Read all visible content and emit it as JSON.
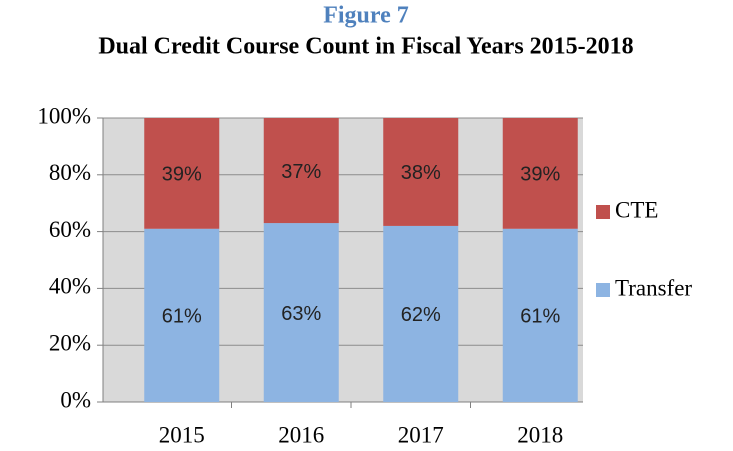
{
  "chart_data": {
    "type": "stacked_bar",
    "title": "Figure 7",
    "subtitle": "Dual Credit Course Count in Fiscal Years 2015-2018",
    "categories": [
      "2015",
      "2016",
      "2017",
      "2018"
    ],
    "series": [
      {
        "name": "Transfer",
        "color": "#8db4e2",
        "values": [
          61,
          63,
          62,
          61
        ],
        "value_labels": [
          "61%",
          "63%",
          "62%",
          "61%"
        ]
      },
      {
        "name": "CTE",
        "color": "#c0504d",
        "values": [
          39,
          37,
          38,
          39
        ],
        "value_labels": [
          "39%",
          "37%",
          "38%",
          "39%"
        ]
      }
    ],
    "ylim": [
      0,
      100
    ],
    "yticks": [
      {
        "value": 0,
        "label": "0%"
      },
      {
        "value": 20,
        "label": "20%"
      },
      {
        "value": 40,
        "label": "40%"
      },
      {
        "value": 60,
        "label": "60%"
      },
      {
        "value": 80,
        "label": "80%"
      },
      {
        "value": 100,
        "label": "100%"
      }
    ],
    "grid": true,
    "legend": "right"
  }
}
